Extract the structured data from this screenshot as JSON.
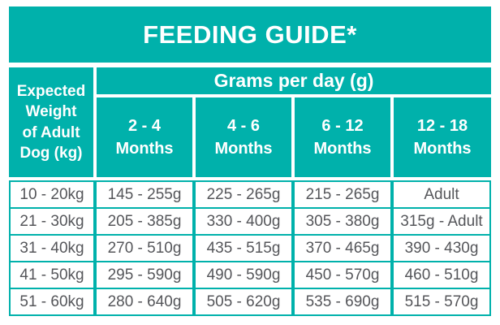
{
  "title": "FEEDING GUIDE*",
  "colors": {
    "teal": "#00b1ab",
    "cell_text": "#55565a",
    "header_text": "#ffffff",
    "background": "#ffffff"
  },
  "table": {
    "corner_header": "Expected\nWeight\nof Adult\nDog (kg)",
    "group_header": "Grams per day (g)",
    "month_columns": [
      "2 - 4\nMonths",
      "4 - 6\nMonths",
      "6 - 12\nMonths",
      "12 - 18\nMonths"
    ],
    "rows": [
      {
        "weight": "10 - 20kg",
        "values": [
          "145 - 255g",
          "225 - 265g",
          "215 - 265g",
          "Adult"
        ]
      },
      {
        "weight": "21 - 30kg",
        "values": [
          "205 - 385g",
          "330 - 400g",
          "305 - 380g",
          "315g - Adult"
        ]
      },
      {
        "weight": "31 - 40kg",
        "values": [
          "270 - 510g",
          "435 - 515g",
          "370 - 465g",
          "390 - 430g"
        ]
      },
      {
        "weight": "41 - 50kg",
        "values": [
          "295 - 590g",
          "490 - 590g",
          "450 - 570g",
          "460 - 510g"
        ]
      },
      {
        "weight": "51 - 60kg",
        "values": [
          "280 - 640g",
          "505 - 620g",
          "535 - 690g",
          "515 - 570g"
        ]
      }
    ]
  }
}
